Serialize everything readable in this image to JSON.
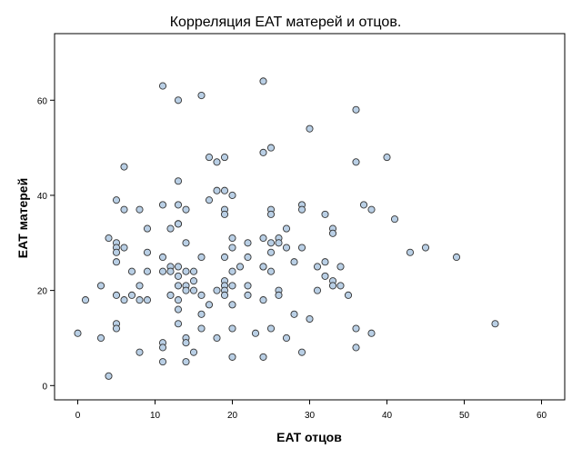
{
  "chart_data": {
    "type": "scatter",
    "title": "Корреляция EAT матерей и отцов.",
    "xlabel": "EAT отцов",
    "ylabel": "EAT матерей",
    "xlim": [
      -3,
      63
    ],
    "ylim": [
      -3,
      74
    ],
    "xticks": [
      0,
      10,
      20,
      30,
      40,
      50,
      60
    ],
    "yticks": [
      0,
      20,
      40,
      60
    ],
    "grid": false,
    "legend": "none",
    "marker_fill": "#b9cfe5",
    "marker_edge": "#333333",
    "frame_color": "#000000",
    "points": [
      [
        0,
        11
      ],
      [
        1,
        18
      ],
      [
        3,
        21
      ],
      [
        3,
        10
      ],
      [
        4,
        31
      ],
      [
        4,
        2
      ],
      [
        5,
        39
      ],
      [
        5,
        30
      ],
      [
        5,
        29
      ],
      [
        5,
        28
      ],
      [
        5,
        26
      ],
      [
        5,
        19
      ],
      [
        5,
        13
      ],
      [
        5,
        12
      ],
      [
        6,
        46
      ],
      [
        6,
        37
      ],
      [
        6,
        29
      ],
      [
        6,
        18
      ],
      [
        7,
        24
      ],
      [
        7,
        19
      ],
      [
        8,
        37
      ],
      [
        8,
        21
      ],
      [
        8,
        18
      ],
      [
        8,
        7
      ],
      [
        9,
        33
      ],
      [
        9,
        28
      ],
      [
        9,
        24
      ],
      [
        9,
        18
      ],
      [
        11,
        63
      ],
      [
        11,
        38
      ],
      [
        11,
        27
      ],
      [
        11,
        24
      ],
      [
        11,
        9
      ],
      [
        11,
        8
      ],
      [
        11,
        5
      ],
      [
        12,
        33
      ],
      [
        12,
        25
      ],
      [
        12,
        24
      ],
      [
        12,
        19
      ],
      [
        13,
        60
      ],
      [
        13,
        43
      ],
      [
        13,
        38
      ],
      [
        13,
        34
      ],
      [
        13,
        34
      ],
      [
        13,
        25
      ],
      [
        13,
        23
      ],
      [
        13,
        21
      ],
      [
        13,
        18
      ],
      [
        13,
        16
      ],
      [
        13,
        13
      ],
      [
        14,
        37
      ],
      [
        14,
        30
      ],
      [
        14,
        24
      ],
      [
        14,
        21
      ],
      [
        14,
        20
      ],
      [
        14,
        10
      ],
      [
        14,
        9
      ],
      [
        14,
        5
      ],
      [
        15,
        24
      ],
      [
        15,
        22
      ],
      [
        15,
        20
      ],
      [
        15,
        7
      ],
      [
        16,
        61
      ],
      [
        16,
        27
      ],
      [
        16,
        19
      ],
      [
        16,
        15
      ],
      [
        16,
        12
      ],
      [
        17,
        48
      ],
      [
        17,
        39
      ],
      [
        17,
        17
      ],
      [
        18,
        47
      ],
      [
        18,
        41
      ],
      [
        18,
        20
      ],
      [
        18,
        10
      ],
      [
        19,
        48
      ],
      [
        19,
        41
      ],
      [
        19,
        37
      ],
      [
        19,
        36
      ],
      [
        19,
        27
      ],
      [
        19,
        22
      ],
      [
        19,
        21
      ],
      [
        19,
        20
      ],
      [
        19,
        19
      ],
      [
        20,
        40
      ],
      [
        20,
        31
      ],
      [
        20,
        29
      ],
      [
        20,
        24
      ],
      [
        20,
        21
      ],
      [
        20,
        17
      ],
      [
        20,
        12
      ],
      [
        20,
        6
      ],
      [
        21,
        25
      ],
      [
        22,
        30
      ],
      [
        22,
        27
      ],
      [
        22,
        21
      ],
      [
        22,
        19
      ],
      [
        23,
        11
      ],
      [
        24,
        64
      ],
      [
        24,
        49
      ],
      [
        24,
        31
      ],
      [
        24,
        25
      ],
      [
        24,
        25
      ],
      [
        24,
        18
      ],
      [
        24,
        6
      ],
      [
        25,
        50
      ],
      [
        25,
        37
      ],
      [
        25,
        36
      ],
      [
        25,
        30
      ],
      [
        25,
        28
      ],
      [
        25,
        24
      ],
      [
        25,
        12
      ],
      [
        26,
        31
      ],
      [
        26,
        30
      ],
      [
        26,
        20
      ],
      [
        26,
        19
      ],
      [
        27,
        33
      ],
      [
        27,
        29
      ],
      [
        27,
        10
      ],
      [
        28,
        26
      ],
      [
        28,
        15
      ],
      [
        29,
        38
      ],
      [
        29,
        37
      ],
      [
        29,
        29
      ],
      [
        29,
        7
      ],
      [
        30,
        54
      ],
      [
        30,
        14
      ],
      [
        31,
        25
      ],
      [
        31,
        20
      ],
      [
        32,
        36
      ],
      [
        32,
        26
      ],
      [
        32,
        23
      ],
      [
        33,
        33
      ],
      [
        33,
        32
      ],
      [
        33,
        22
      ],
      [
        33,
        21
      ],
      [
        34,
        25
      ],
      [
        34,
        21
      ],
      [
        35,
        19
      ],
      [
        36,
        58
      ],
      [
        36,
        47
      ],
      [
        36,
        12
      ],
      [
        36,
        8
      ],
      [
        37,
        38
      ],
      [
        38,
        37
      ],
      [
        38,
        11
      ],
      [
        40,
        48
      ],
      [
        41,
        35
      ],
      [
        43,
        28
      ],
      [
        45,
        29
      ],
      [
        49,
        27
      ],
      [
        54,
        13
      ]
    ]
  }
}
